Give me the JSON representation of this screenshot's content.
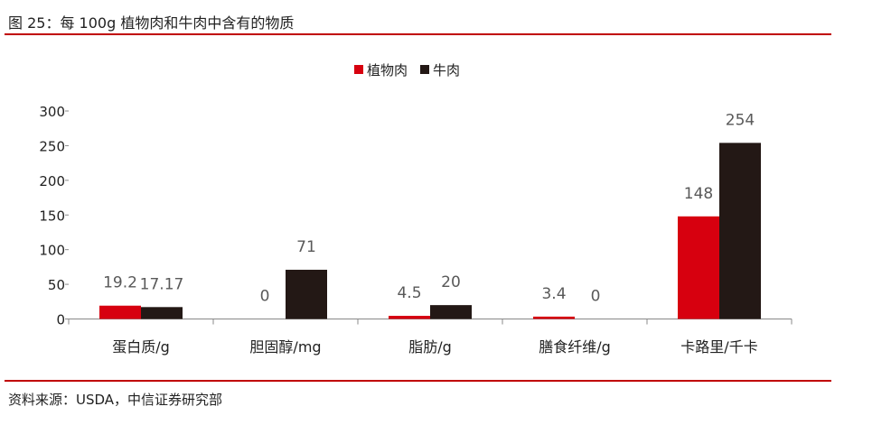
{
  "title": "图 25：每 100g 植物肉和牛肉中含有的物质",
  "source": "资料来源：USDA，中信证券研究部",
  "chart_data": {
    "type": "bar",
    "categories": [
      "蛋白质/g",
      "胆固醇/mg",
      "脂肪/g",
      "膳食纤维/g",
      "卡路里/千卡"
    ],
    "series": [
      {
        "name": "植物肉",
        "values": [
          19.2,
          0,
          4.5,
          3.4,
          148
        ],
        "labels": [
          "19.2",
          "0",
          "4.5",
          "3.4",
          "148"
        ],
        "color": "#d7000f"
      },
      {
        "name": "牛肉",
        "values": [
          17.17,
          71,
          20,
          0,
          254
        ],
        "labels": [
          "17.17",
          "71",
          "20",
          "0",
          "254"
        ],
        "color": "#231815"
      }
    ],
    "ylim": [
      0,
      300
    ],
    "yticks": [
      0,
      50,
      100,
      150,
      200,
      250,
      300
    ],
    "grid": false,
    "legend": "top-center"
  }
}
